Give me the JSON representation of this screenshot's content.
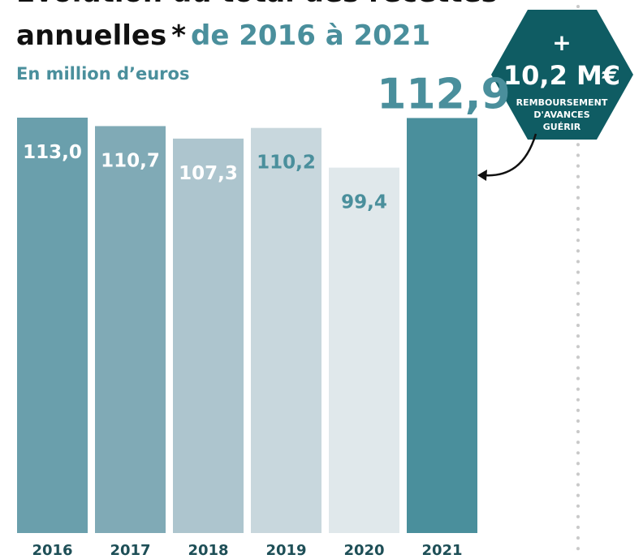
{
  "chart_data": {
    "type": "bar",
    "title_lines": [
      "Évolution du total des recettes",
      "annuelles"
    ],
    "title_marker": "*",
    "title_highlight": "de 2016 à 2021",
    "subtitle": "En million d’euros",
    "categories": [
      "2016",
      "2017",
      "2018",
      "2019",
      "2020",
      "2021"
    ],
    "values": [
      113.0,
      110.7,
      107.3,
      110.2,
      99.4,
      112.9
    ],
    "value_labels": [
      "113,0",
      "110,7",
      "107,3",
      "110,2",
      "99,4",
      "112,9"
    ],
    "colors": [
      "#6a9fac",
      "#80aab6",
      "#adc5ce",
      "#c8d7dd",
      "#e0e8eb",
      "#4a8f9c"
    ],
    "label_colors": [
      "#ffffff",
      "#ffffff",
      "#ffffff",
      "#4a8f9c",
      "#4a8f9c",
      "#4a8f9c"
    ],
    "ylim": [
      0,
      113
    ],
    "annotation": {
      "plus": "+",
      "value": "10,2 M€",
      "lines": [
        "REMBOURSEMENT",
        "D'AVANCES",
        "GUÉRIR"
      ]
    }
  }
}
